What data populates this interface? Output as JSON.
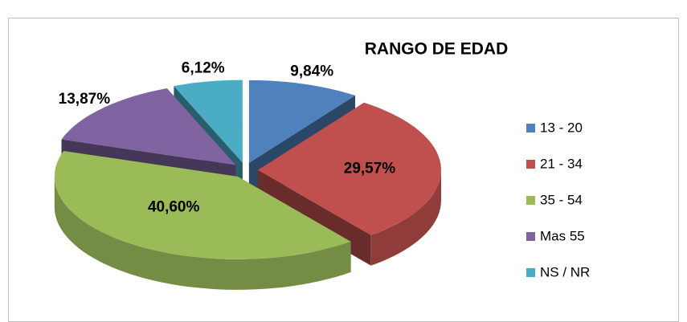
{
  "chart_data": {
    "type": "pie",
    "title": "RANGO DE EDAD",
    "categories": [
      "13 - 20",
      "21 - 34",
      "35 - 54",
      "Mas 55",
      "NS / NR"
    ],
    "series": [
      {
        "name": "RANGO DE EDAD",
        "values": [
          9.84,
          29.57,
          40.6,
          13.87,
          6.12
        ],
        "value_labels": [
          "9,84%",
          "29,57%",
          "40,60%",
          "13,87%",
          "6,12%"
        ],
        "colors": [
          "#4f81bd",
          "#c0504d",
          "#9bbb59",
          "#8064a2",
          "#4bacc6"
        ]
      }
    ],
    "legend": "right"
  }
}
